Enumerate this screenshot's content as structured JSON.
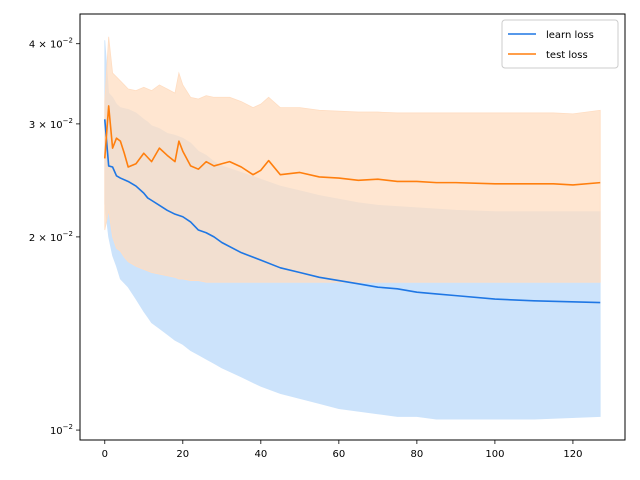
{
  "chart_data": {
    "type": "line",
    "title": "",
    "xlabel": "",
    "ylabel": "",
    "yscale": "log",
    "xlim": [
      -6.35,
      133.35
    ],
    "ylim": [
      0.00965,
      0.0445
    ],
    "xticks": [
      0,
      20,
      40,
      60,
      80,
      100,
      120
    ],
    "yticks": [
      {
        "value": 0.01,
        "base": "10",
        "exp": "−2"
      },
      {
        "value": 0.02,
        "base": "2 × 10",
        "exp": "−2"
      },
      {
        "value": 0.03,
        "base": "3 × 10",
        "exp": "−2"
      },
      {
        "value": 0.04,
        "base": "4 × 10",
        "exp": "−2"
      }
    ],
    "grid": false,
    "legend_position": "top-right",
    "series": [
      {
        "name": "learn loss",
        "color": "#1f77e4",
        "fill_color": "#cce3fb",
        "x": [
          0,
          1,
          2,
          3,
          4,
          6,
          8,
          10,
          11,
          12,
          14,
          16,
          18,
          20,
          22,
          24,
          26,
          28,
          30,
          35,
          40,
          45,
          50,
          55,
          60,
          65,
          70,
          75,
          80,
          85,
          90,
          100,
          110,
          127
        ],
        "y": [
          0.0305,
          0.0258,
          0.0257,
          0.0249,
          0.0247,
          0.0244,
          0.024,
          0.0234,
          0.023,
          0.0228,
          0.0224,
          0.022,
          0.0217,
          0.0215,
          0.0211,
          0.0205,
          0.0203,
          0.02,
          0.0196,
          0.0189,
          0.0184,
          0.0179,
          0.0176,
          0.0173,
          0.0171,
          0.0169,
          0.0167,
          0.0166,
          0.0164,
          0.0163,
          0.0162,
          0.016,
          0.0159,
          0.0158
        ],
        "lower": [
          0.0225,
          0.02,
          0.0187,
          0.018,
          0.0172,
          0.0167,
          0.016,
          0.0153,
          0.015,
          0.0147,
          0.0144,
          0.0141,
          0.0138,
          0.0136,
          0.0133,
          0.0131,
          0.0129,
          0.0127,
          0.0125,
          0.0121,
          0.0117,
          0.0114,
          0.0112,
          0.011,
          0.0108,
          0.0107,
          0.0106,
          0.0105,
          0.0105,
          0.0104,
          0.0104,
          0.0104,
          0.0104,
          0.0105
        ],
        "upper": [
          0.0405,
          0.0335,
          0.033,
          0.0322,
          0.0318,
          0.0316,
          0.0312,
          0.0305,
          0.0302,
          0.0298,
          0.0295,
          0.029,
          0.0288,
          0.0285,
          0.028,
          0.0272,
          0.0268,
          0.0262,
          0.0258,
          0.0252,
          0.0246,
          0.024,
          0.0236,
          0.0232,
          0.0229,
          0.0226,
          0.0224,
          0.0223,
          0.0222,
          0.0221,
          0.022,
          0.0219,
          0.0219,
          0.0219
        ]
      },
      {
        "name": "test loss",
        "color": "#ff7f0e",
        "fill_color": "#ffddc2",
        "x": [
          0,
          1,
          2,
          3,
          4,
          5,
          6,
          8,
          10,
          12,
          14,
          16,
          18,
          19,
          20,
          22,
          24,
          26,
          28,
          30,
          32,
          35,
          38,
          40,
          42,
          45,
          50,
          55,
          60,
          65,
          70,
          75,
          80,
          85,
          90,
          100,
          110,
          115,
          120,
          127
        ],
        "y": [
          0.0265,
          0.032,
          0.0275,
          0.0285,
          0.0282,
          0.027,
          0.0257,
          0.026,
          0.027,
          0.0262,
          0.0275,
          0.0268,
          0.0262,
          0.0282,
          0.0272,
          0.0258,
          0.0255,
          0.0262,
          0.0258,
          0.026,
          0.0262,
          0.0257,
          0.025,
          0.0254,
          0.0263,
          0.025,
          0.0252,
          0.0248,
          0.0247,
          0.0245,
          0.0246,
          0.0244,
          0.0244,
          0.0243,
          0.0243,
          0.0242,
          0.0242,
          0.0242,
          0.0241,
          0.0243
        ],
        "lower": [
          0.0205,
          0.022,
          0.02,
          0.0192,
          0.019,
          0.0186,
          0.0183,
          0.018,
          0.0178,
          0.0176,
          0.0175,
          0.0174,
          0.0173,
          0.0172,
          0.0172,
          0.0171,
          0.0171,
          0.017,
          0.017,
          0.017,
          0.017,
          0.017,
          0.017,
          0.017,
          0.017,
          0.017,
          0.017,
          0.017,
          0.017,
          0.017,
          0.017,
          0.017,
          0.017,
          0.017,
          0.017,
          0.017,
          0.017,
          0.017,
          0.017,
          0.017
        ],
        "upper": [
          0.0325,
          0.041,
          0.036,
          0.0355,
          0.035,
          0.0345,
          0.034,
          0.0338,
          0.0342,
          0.0338,
          0.0345,
          0.034,
          0.0335,
          0.036,
          0.0345,
          0.033,
          0.0328,
          0.0332,
          0.033,
          0.033,
          0.033,
          0.0325,
          0.0318,
          0.0322,
          0.033,
          0.0318,
          0.0318,
          0.0315,
          0.0314,
          0.0313,
          0.0313,
          0.0312,
          0.0312,
          0.0312,
          0.0312,
          0.0312,
          0.0312,
          0.0312,
          0.0311,
          0.0315
        ]
      }
    ]
  }
}
